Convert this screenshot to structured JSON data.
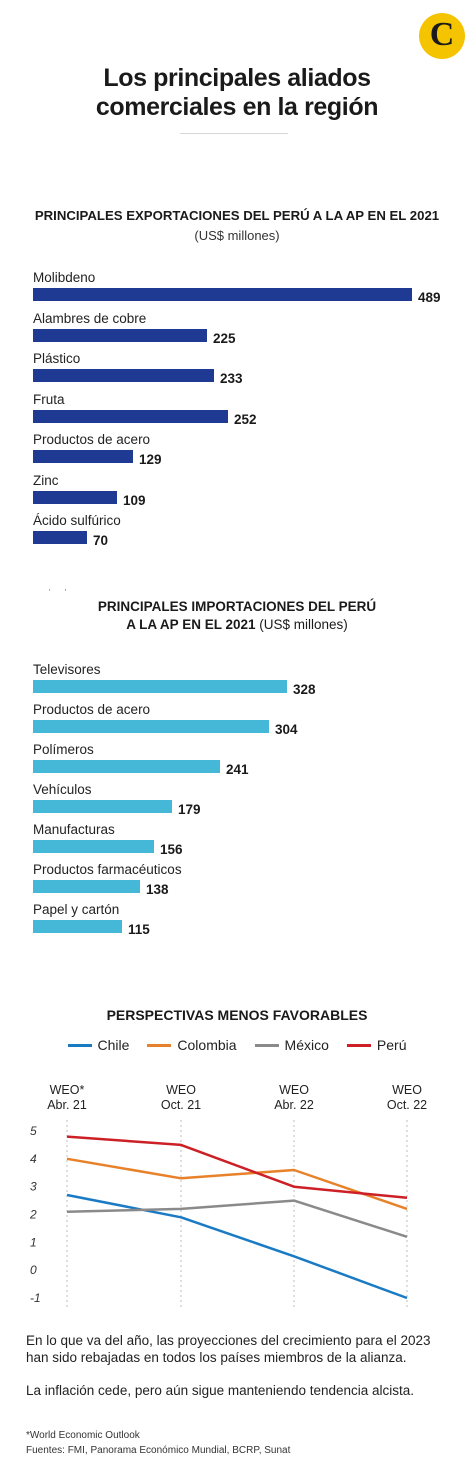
{
  "logo": {
    "letter": "C"
  },
  "title": "Los principales aliados comerciales en la región",
  "exports": {
    "title": "PRINCIPALES EXPORTACIONES DEL PERÚ A LA AP EN EL 2021",
    "unit": "(US$ millones)"
  },
  "imports": {
    "title_line1": "PRINCIPALES IMPORTACIONES DEL PERÚ",
    "title_line2": "A LA AP EN EL 2021",
    "unit": "(US$ millones)"
  },
  "line_section": {
    "title": "PERSPECTIVAS MENOS FAVORABLES",
    "legend_labels": [
      "Chile",
      "Colombia",
      "México",
      "Perú"
    ]
  },
  "colors": {
    "export_bar": "#1f3a93",
    "import_bar": "#45b8d8",
    "chile": "#1a7bc4",
    "colombia": "#e8822a",
    "mexico": "#8a8a8a",
    "peru": "#cc2026"
  },
  "chart_data": [
    {
      "type": "bar",
      "orientation": "horizontal",
      "title": "PRINCIPALES EXPORTACIONES DEL PERÚ A LA AP EN EL 2021",
      "subtitle": "(US$ millones)",
      "categories": [
        "Molibdeno",
        "Alambres de cobre",
        "Plástico",
        "Fruta",
        "Productos de acero",
        "Zinc",
        "Ácido sulfúrico"
      ],
      "values": [
        489,
        225,
        233,
        252,
        129,
        109,
        70
      ],
      "xlim": [
        0,
        489
      ],
      "grid": false
    },
    {
      "type": "bar",
      "orientation": "horizontal",
      "title": "PRINCIPALES IMPORTACIONES DEL PERÚ A LA AP EN EL 2021",
      "subtitle": "(US$ millones)",
      "categories": [
        "Televisores",
        "Productos de acero",
        "Polímeros",
        "Vehículos",
        "Manufacturas",
        "Productos farmacéuticos",
        "Papel y cartón"
      ],
      "values": [
        328,
        304,
        241,
        179,
        156,
        138,
        115
      ],
      "xlim": [
        0,
        489
      ],
      "grid": false
    },
    {
      "type": "line",
      "title": "PERSPECTIVAS MENOS FAVORABLES",
      "x": [
        {
          "top": "WEO*",
          "bottom": "Abr. 21"
        },
        {
          "top": "WEO",
          "bottom": "Oct. 21"
        },
        {
          "top": "WEO",
          "bottom": "Abr. 22"
        },
        {
          "top": "WEO",
          "bottom": "Oct. 22"
        }
      ],
      "yticks": [
        "5",
        "4",
        "3",
        "2",
        "1",
        "0",
        "-1"
      ],
      "ylim": [
        -1,
        5
      ],
      "series": [
        {
          "name": "Chile",
          "values": [
            2.7,
            1.9,
            0.5,
            -1.0
          ]
        },
        {
          "name": "Colombia",
          "values": [
            4.0,
            3.3,
            3.6,
            2.2
          ]
        },
        {
          "name": "México",
          "values": [
            2.1,
            2.2,
            2.5,
            1.2
          ]
        },
        {
          "name": "Perú",
          "values": [
            4.8,
            4.5,
            3.0,
            2.6
          ]
        }
      ],
      "grid": "vertical-dashed",
      "legend": "top"
    }
  ],
  "text": {
    "paragraph1": "En lo que va del año, las proyecciones del crecimiento para el 2023 han sido rebajadas en todos los países miembros de la alianza.",
    "paragraph2": "La inflación cede, pero aún sigue manteniendo tendencia alcista."
  },
  "footnotes": {
    "weo": "*World Economic Outlook",
    "sources": "Fuentes: FMI, Panorama Económico Mundial, BCRP, Sunat"
  }
}
